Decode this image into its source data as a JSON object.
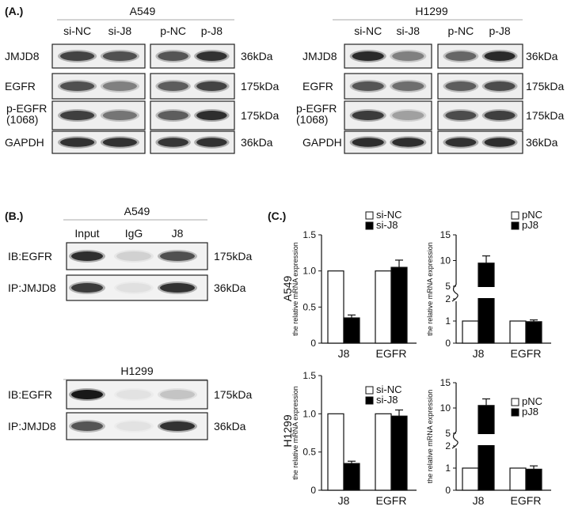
{
  "panelA": {
    "label": "(A.)",
    "groups": [
      {
        "cell": "A549",
        "lanes": [
          "si-NC",
          "si-J8",
          "p-NC",
          "p-J8"
        ],
        "bands": [
          [
            0.78,
            0.72,
            0.7,
            0.86
          ],
          [
            0.72,
            0.5,
            0.66,
            0.78
          ],
          [
            0.8,
            0.55,
            0.66,
            0.88
          ],
          [
            0.86,
            0.86,
            0.84,
            0.86
          ]
        ]
      },
      {
        "cell": "H1299",
        "lanes": [
          "si-NC",
          "si-J8",
          "p-NC",
          "p-J8"
        ],
        "bands": [
          [
            0.9,
            0.5,
            0.62,
            0.9
          ],
          [
            0.7,
            0.58,
            0.66,
            0.74
          ],
          [
            0.82,
            0.35,
            0.74,
            0.8
          ],
          [
            0.88,
            0.88,
            0.86,
            0.88
          ]
        ]
      }
    ],
    "rows": [
      {
        "name": "JMJD8",
        "size": "36kDa"
      },
      {
        "name": "EGFR",
        "size": "175kDa"
      },
      {
        "name": "p-EGFR\n(1068)",
        "size": "175kDa"
      },
      {
        "name": "GAPDH",
        "size": "36kDa"
      }
    ]
  },
  "panelB": {
    "label": "(B.)",
    "lanes": [
      "Input",
      "IgG",
      "J8"
    ],
    "blots": [
      {
        "cell": "A549",
        "rows": [
          {
            "name": "IB:EGFR",
            "size": "175kDa",
            "bands": [
              0.88,
              0.12,
              0.72
            ]
          },
          {
            "name": "IP:JMJD8",
            "size": "36kDa",
            "bands": [
              0.82,
              0.05,
              0.86
            ]
          }
        ]
      },
      {
        "cell": "H1299",
        "rows": [
          {
            "name": "IB:EGFR",
            "size": "175kDa",
            "bands": [
              0.98,
              0.04,
              0.18
            ]
          },
          {
            "name": "IP:JMJD8",
            "size": "36kDa",
            "bands": [
              0.7,
              0.04,
              0.86
            ]
          }
        ]
      }
    ]
  },
  "panelC": {
    "label": "(C.)"
  },
  "chart_data": [
    {
      "type": "bar",
      "row_label": "A549",
      "ylabel": "the relative mRNA expression",
      "categories": [
        "J8",
        "EGFR"
      ],
      "ylim": [
        0,
        1.5
      ],
      "yticks": [
        "0",
        "0.5",
        "1.0",
        "1.5"
      ],
      "broken_axis": false,
      "series": [
        {
          "name": "si-NC",
          "color": "#ffffff",
          "values": [
            1.0,
            1.0
          ],
          "errors": [
            0,
            0
          ]
        },
        {
          "name": "si-J8",
          "color": "#000000",
          "values": [
            0.35,
            1.05
          ],
          "errors": [
            0.04,
            0.1
          ]
        }
      ],
      "legend": "top-right"
    },
    {
      "type": "bar",
      "row_label": "A549",
      "ylabel": "the relative mRNA expression",
      "categories": [
        "J8",
        "EGFR"
      ],
      "ylim": [
        0,
        15
      ],
      "yticks": [
        "0",
        "1",
        "2",
        "5",
        "10",
        "15"
      ],
      "broken_axis": true,
      "series": [
        {
          "name": "pNC",
          "color": "#ffffff",
          "values": [
            1.0,
            1.0
          ],
          "errors": [
            0,
            0
          ]
        },
        {
          "name": "pJ8",
          "color": "#000000",
          "values": [
            9.5,
            0.97
          ],
          "errors": [
            1.4,
            0.08
          ]
        }
      ],
      "legend": "top-right"
    },
    {
      "type": "bar",
      "row_label": "H1299",
      "ylabel": "the relative mRNA expression",
      "categories": [
        "J8",
        "EGFR"
      ],
      "ylim": [
        0,
        1.5
      ],
      "yticks": [
        "0",
        "0.5",
        "1.0",
        "1.5"
      ],
      "broken_axis": false,
      "series": [
        {
          "name": "si-NC",
          "color": "#ffffff",
          "values": [
            1.0,
            1.0
          ],
          "errors": [
            0,
            0
          ]
        },
        {
          "name": "si-J8",
          "color": "#000000",
          "values": [
            0.35,
            0.97
          ],
          "errors": [
            0.03,
            0.08
          ]
        }
      ],
      "legend": "top-right"
    },
    {
      "type": "bar",
      "row_label": "H1299",
      "ylabel": "the relative mRNA expression",
      "categories": [
        "J8",
        "EGFR"
      ],
      "ylim": [
        0,
        15
      ],
      "yticks": [
        "0",
        "1",
        "2",
        "5",
        "10",
        "15"
      ],
      "broken_axis": true,
      "series": [
        {
          "name": "pNC",
          "color": "#ffffff",
          "values": [
            1.0,
            1.0
          ],
          "errors": [
            0,
            0
          ]
        },
        {
          "name": "pJ8",
          "color": "#000000",
          "values": [
            10.5,
            0.95
          ],
          "errors": [
            1.3,
            0.15
          ]
        }
      ],
      "legend": "top-right"
    }
  ]
}
